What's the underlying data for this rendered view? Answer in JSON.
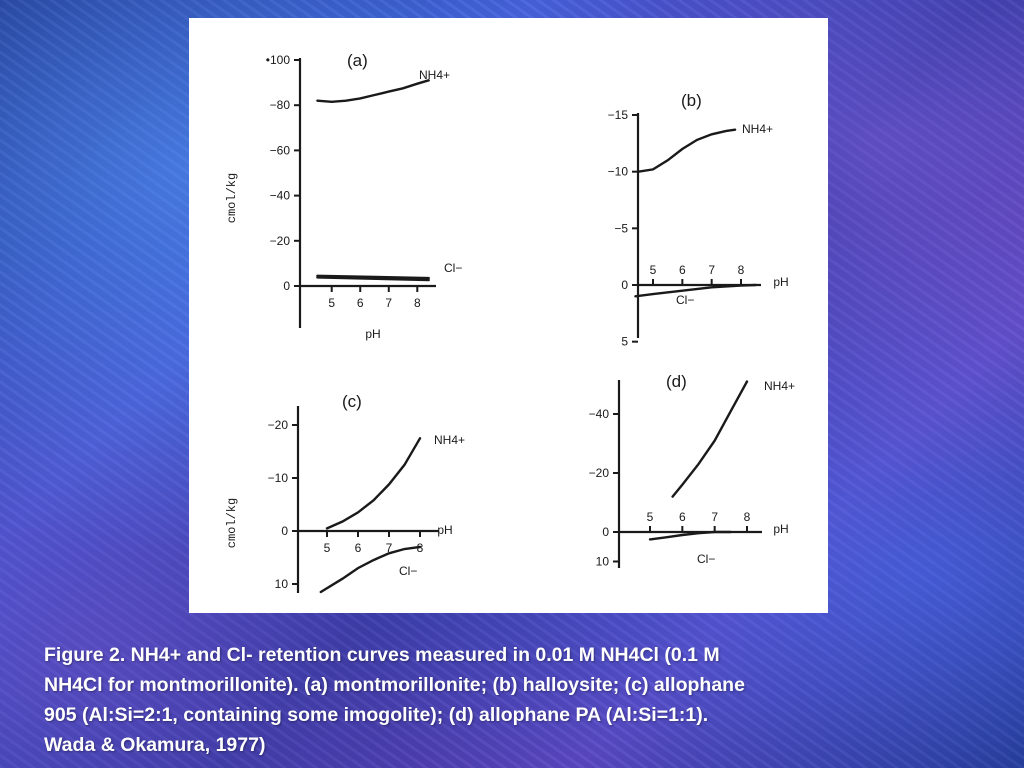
{
  "caption": {
    "line1": "Figure 2. NH4+ and Cl- retention curves measured in 0.01 M NH4Cl (0.1 M",
    "line2": "NH4Cl for montmorillonite). (a) montmorillonite; (b) halloysite; (c) allophane",
    "line3": "905 (Al:Si=2:1, containing some imogolite); (d) allophane PA (Al:Si=1:1).",
    "line4": "Wada & Okamura, 1977)"
  },
  "chart_data": [
    {
      "type": "line",
      "panel": "(a)",
      "ylabel": "cmol/kg",
      "xlabel": "pH",
      "x_ticks": [
        5,
        6,
        7,
        8
      ],
      "y_ticks": [
        0,
        20,
        40,
        60,
        80,
        100
      ],
      "y_tick_labels": [
        "0",
        "−20",
        "−40",
        "−60",
        "−80",
        "•100"
      ],
      "series": [
        {
          "name": "NH4+",
          "x": [
            4.5,
            5.0,
            5.5,
            6.0,
            6.5,
            7.0,
            7.5,
            8.0,
            8.4
          ],
          "y": [
            82,
            81.5,
            82,
            83,
            84.5,
            86,
            87.5,
            89.5,
            91
          ]
        },
        {
          "name": "Cl−",
          "x": [
            4.5,
            8.4
          ],
          "y": [
            4.5,
            3.5
          ]
        },
        {
          "x": [
            4.5,
            8.4
          ],
          "y": [
            3.8,
            2.6
          ]
        }
      ]
    },
    {
      "type": "line",
      "panel": "(b)",
      "xlabel": "pH",
      "x_ticks": [
        5,
        6,
        7,
        8
      ],
      "y_ticks": [
        -5,
        0,
        5,
        10,
        15
      ],
      "y_tick_labels": [
        "5",
        "0",
        "−5",
        "−10",
        "−15"
      ],
      "series": [
        {
          "name": "NH4+",
          "x": [
            4.5,
            5.0,
            5.5,
            6.0,
            6.5,
            7.0,
            7.5,
            7.8
          ],
          "y": [
            10,
            10.2,
            11,
            12,
            12.8,
            13.3,
            13.6,
            13.7
          ]
        },
        {
          "name": "Cl−",
          "x": [
            4.4,
            5.0,
            6.0,
            7.0,
            8.0,
            8.5
          ],
          "y": [
            -1.0,
            -0.8,
            -0.5,
            -0.2,
            -0.05,
            0.0
          ]
        }
      ]
    },
    {
      "type": "line",
      "panel": "(c)",
      "ylabel": "cmol/kg",
      "xlabel": "pH",
      "x_ticks": [
        5,
        6,
        7,
        8
      ],
      "y_ticks": [
        -10,
        0,
        10,
        20
      ],
      "y_tick_labels": [
        "10",
        "0",
        "−10",
        "−20"
      ],
      "series": [
        {
          "name": "NH4+",
          "x": [
            5.0,
            5.5,
            6.0,
            6.5,
            7.0,
            7.5,
            8.0
          ],
          "y": [
            0.5,
            1.8,
            3.5,
            5.8,
            8.8,
            12.5,
            17.5
          ]
        },
        {
          "name": "Cl−",
          "x": [
            4.8,
            5.5,
            6.0,
            6.5,
            7.0,
            7.5,
            8.0
          ],
          "y": [
            -11.5,
            -9.0,
            -7.0,
            -5.5,
            -4.2,
            -3.4,
            -3.0
          ]
        }
      ]
    },
    {
      "type": "line",
      "panel": "(d)",
      "xlabel": "pH",
      "x_ticks": [
        5,
        6,
        7,
        8
      ],
      "y_ticks": [
        -10,
        0,
        20,
        40
      ],
      "y_tick_labels": [
        "10",
        "0",
        "−20",
        "−40"
      ],
      "series": [
        {
          "name": "NH4+",
          "x": [
            5.7,
            6.0,
            6.5,
            7.0,
            7.5,
            8.0
          ],
          "y": [
            12,
            16,
            23,
            31,
            41,
            51
          ]
        },
        {
          "name": "Cl−",
          "x": [
            5.0,
            5.5,
            6.0,
            6.5,
            7.0,
            7.5
          ],
          "y": [
            -2.5,
            -1.8,
            -1.0,
            -0.4,
            0.0,
            0.0
          ]
        }
      ]
    }
  ]
}
